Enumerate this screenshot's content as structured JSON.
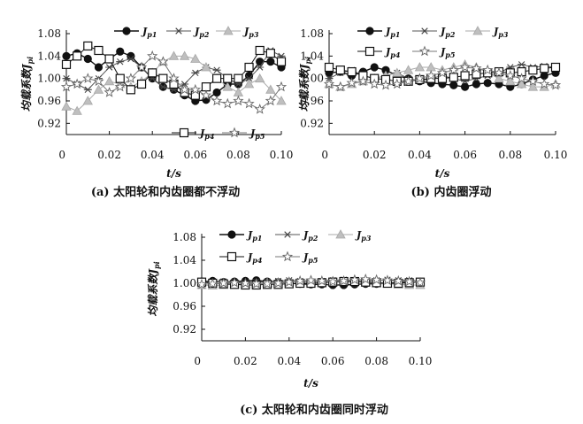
{
  "chart_data": [
    {
      "id": "a",
      "type": "line",
      "caption": "(a) 太阳轮和内齿圈都不浮动",
      "xlabel": "t/s",
      "ylabel": "均载系数J",
      "ylabel_sub": "pi",
      "xlim": [
        0,
        0.1
      ],
      "ylim": [
        0.9,
        1.08
      ],
      "x_ticks": [
        "0",
        "0.02",
        "0.04",
        "0.06",
        "0.08",
        "0.10"
      ],
      "y_ticks": [
        "0.92",
        "0.96",
        "1.00",
        "1.04",
        "1.08"
      ],
      "series": [
        {
          "name": "J",
          "sub": "p1",
          "marker": "circle",
          "x": [
            0,
            0.005,
            0.01,
            0.015,
            0.02,
            0.025,
            0.03,
            0.035,
            0.04,
            0.045,
            0.05,
            0.055,
            0.06,
            0.065,
            0.07,
            0.075,
            0.08,
            0.085,
            0.09,
            0.095,
            0.1
          ],
          "y": [
            1.04,
            1.045,
            1.035,
            1.02,
            1.035,
            1.048,
            1.04,
            1.02,
            1.0,
            0.985,
            0.98,
            0.97,
            0.96,
            0.962,
            0.975,
            0.99,
            0.99,
            1.005,
            1.03,
            1.03,
            1.02
          ]
        },
        {
          "name": "J",
          "sub": "p2",
          "marker": "asterisk",
          "x": [
            0,
            0.005,
            0.01,
            0.015,
            0.02,
            0.025,
            0.03,
            0.035,
            0.04,
            0.045,
            0.05,
            0.055,
            0.06,
            0.065,
            0.07,
            0.075,
            0.08,
            0.085,
            0.09,
            0.095,
            0.1
          ],
          "y": [
            1.0,
            0.99,
            0.98,
            1.0,
            1.02,
            1.03,
            1.035,
            1.02,
            1.0,
            0.985,
            0.98,
            0.99,
            1.01,
            1.02,
            1.015,
            1.0,
            0.99,
            1.0,
            1.02,
            1.05,
            1.04
          ]
        },
        {
          "name": "J",
          "sub": "p3",
          "marker": "triangle",
          "x": [
            0,
            0.005,
            0.01,
            0.015,
            0.02,
            0.025,
            0.03,
            0.035,
            0.04,
            0.045,
            0.05,
            0.055,
            0.06,
            0.065,
            0.07,
            0.075,
            0.08,
            0.085,
            0.09,
            0.095,
            0.1
          ],
          "y": [
            0.95,
            0.942,
            0.96,
            0.98,
            0.995,
            0.99,
            0.985,
            0.995,
            1.01,
            1.03,
            1.04,
            1.04,
            1.035,
            1.02,
            1.0,
            0.985,
            0.975,
            0.99,
            1.0,
            0.98,
            0.96
          ]
        },
        {
          "name": "J",
          "sub": "p4",
          "marker": "square",
          "x": [
            0,
            0.005,
            0.01,
            0.015,
            0.02,
            0.025,
            0.03,
            0.035,
            0.04,
            0.045,
            0.05,
            0.055,
            0.06,
            0.065,
            0.07,
            0.075,
            0.08,
            0.085,
            0.09,
            0.095,
            0.1
          ],
          "y": [
            1.025,
            1.04,
            1.058,
            1.05,
            1.035,
            1.0,
            0.98,
            0.99,
            1.01,
            1.0,
            0.99,
            0.975,
            0.97,
            0.985,
            1.0,
            1.0,
            1.0,
            1.02,
            1.05,
            1.045,
            1.03
          ]
        },
        {
          "name": "J",
          "sub": "p5",
          "marker": "star",
          "x": [
            0,
            0.005,
            0.01,
            0.015,
            0.02,
            0.025,
            0.03,
            0.035,
            0.04,
            0.045,
            0.05,
            0.055,
            0.06,
            0.065,
            0.07,
            0.075,
            0.08,
            0.085,
            0.09,
            0.095,
            0.1
          ],
          "y": [
            0.985,
            0.99,
            1.0,
            0.995,
            0.975,
            0.985,
            1.0,
            1.02,
            1.04,
            1.03,
            1.0,
            0.98,
            0.98,
            0.97,
            0.96,
            0.955,
            0.96,
            0.955,
            0.945,
            0.96,
            0.985
          ]
        }
      ]
    },
    {
      "id": "b",
      "type": "line",
      "caption": "(b) 内齿圈浮动",
      "xlabel": "t/s",
      "ylabel": "均载系数J",
      "ylabel_sub": "pi",
      "xlim": [
        0,
        0.1
      ],
      "ylim": [
        0.9,
        1.08
      ],
      "x_ticks": [
        "0",
        "0.02",
        "0.04",
        "0.06",
        "0.08",
        "0.10"
      ],
      "y_ticks": [
        "0.92",
        "0.96",
        "1.00",
        "1.04",
        "1.08"
      ],
      "series": [
        {
          "name": "J",
          "sub": "p1",
          "marker": "circle",
          "x": [
            0,
            0.005,
            0.01,
            0.015,
            0.02,
            0.025,
            0.03,
            0.035,
            0.04,
            0.045,
            0.05,
            0.055,
            0.06,
            0.065,
            0.07,
            0.075,
            0.08,
            0.085,
            0.09,
            0.095,
            0.1
          ],
          "y": [
            1.01,
            1.012,
            1.005,
            1.012,
            1.02,
            1.015,
            1.005,
            1.0,
            0.995,
            0.992,
            0.99,
            0.988,
            0.985,
            0.99,
            0.992,
            0.99,
            0.985,
            0.99,
            0.998,
            1.005,
            1.01
          ]
        },
        {
          "name": "J",
          "sub": "p2",
          "marker": "asterisk",
          "x": [
            0,
            0.005,
            0.01,
            0.015,
            0.02,
            0.025,
            0.03,
            0.035,
            0.04,
            0.045,
            0.05,
            0.055,
            0.06,
            0.065,
            0.07,
            0.075,
            0.08,
            0.085,
            0.09,
            0.095,
            0.1
          ],
          "y": [
            1.0,
            1.01,
            1.015,
            1.005,
            1.0,
            1.005,
            1.01,
            1.0,
            0.995,
            1.0,
            1.005,
            1.0,
            0.995,
            1.0,
            1.005,
            1.01,
            1.02,
            1.025,
            1.02,
            1.022,
            1.02
          ]
        },
        {
          "name": "J",
          "sub": "p3",
          "marker": "triangle",
          "x": [
            0,
            0.005,
            0.01,
            0.015,
            0.02,
            0.025,
            0.03,
            0.035,
            0.04,
            0.045,
            0.05,
            0.055,
            0.06,
            0.065,
            0.07,
            0.075,
            0.08,
            0.085,
            0.09,
            0.095,
            0.1
          ],
          "y": [
            0.99,
            0.985,
            0.99,
            0.995,
            1.0,
            1.005,
            1.01,
            1.015,
            1.02,
            1.02,
            1.015,
            1.02,
            1.025,
            1.02,
            1.01,
            1.0,
            0.995,
            0.99,
            0.985,
            0.985,
            0.99
          ]
        },
        {
          "name": "J",
          "sub": "p4",
          "marker": "square",
          "x": [
            0,
            0.005,
            0.01,
            0.015,
            0.02,
            0.025,
            0.03,
            0.035,
            0.04,
            0.045,
            0.05,
            0.055,
            0.06,
            0.065,
            0.07,
            0.075,
            0.08,
            0.085,
            0.09,
            0.095,
            0.1
          ],
          "y": [
            1.02,
            1.015,
            1.012,
            1.005,
            1.0,
            0.998,
            0.995,
            0.995,
            0.998,
            1.0,
            1.0,
            1.002,
            1.005,
            1.008,
            1.01,
            1.012,
            1.01,
            1.012,
            1.015,
            1.018,
            1.02
          ]
        },
        {
          "name": "J",
          "sub": "p5",
          "marker": "star",
          "x": [
            0,
            0.005,
            0.01,
            0.015,
            0.02,
            0.025,
            0.03,
            0.035,
            0.04,
            0.045,
            0.05,
            0.055,
            0.06,
            0.065,
            0.07,
            0.075,
            0.08,
            0.085,
            0.09,
            0.095,
            0.1
          ],
          "y": [
            0.99,
            0.985,
            0.992,
            0.995,
            0.99,
            0.988,
            0.99,
            0.995,
            1.0,
            1.005,
            1.01,
            1.015,
            1.02,
            1.018,
            1.015,
            1.01,
            1.005,
            1.0,
            0.995,
            0.99,
            0.988
          ]
        }
      ]
    },
    {
      "id": "c",
      "type": "line",
      "caption": "(c) 太阳轮和内齿圈同时浮动",
      "xlabel": "t/s",
      "ylabel": "均载系数J",
      "ylabel_sub": "pi",
      "xlim": [
        0,
        0.1
      ],
      "ylim": [
        0.9,
        1.08
      ],
      "x_ticks": [
        "0",
        "0.02",
        "0.04",
        "0.06",
        "0.08",
        "0.10"
      ],
      "y_ticks": [
        "0.92",
        "0.96",
        "1.00",
        "1.04",
        "1.08"
      ],
      "series": [
        {
          "name": "J",
          "sub": "p1",
          "marker": "circle",
          "x": [
            0,
            0.005,
            0.01,
            0.015,
            0.02,
            0.025,
            0.03,
            0.035,
            0.04,
            0.045,
            0.05,
            0.055,
            0.06,
            0.065,
            0.07,
            0.075,
            0.08,
            0.085,
            0.09,
            0.095,
            0.1
          ],
          "y": [
            1.003,
            1.004,
            1.002,
            1.003,
            1.004,
            1.005,
            1.003,
            1.002,
            1.0,
            0.999,
            0.998,
            0.998,
            0.997,
            0.997,
            0.998,
            0.999,
            0.999,
            1.0,
            1.001,
            1.002,
            1.002
          ]
        },
        {
          "name": "J",
          "sub": "p2",
          "marker": "asterisk",
          "x": [
            0,
            0.005,
            0.01,
            0.015,
            0.02,
            0.025,
            0.03,
            0.035,
            0.04,
            0.045,
            0.05,
            0.055,
            0.06,
            0.065,
            0.07,
            0.075,
            0.08,
            0.085,
            0.09,
            0.095,
            0.1
          ],
          "y": [
            1.0,
            1.002,
            1.003,
            1.002,
            1.001,
            1.002,
            1.003,
            1.004,
            1.005,
            1.004,
            1.003,
            1.004,
            1.005,
            1.006,
            1.005,
            1.004,
            1.005,
            1.006,
            1.005,
            1.005,
            1.004
          ]
        },
        {
          "name": "J",
          "sub": "p3",
          "marker": "triangle",
          "x": [
            0,
            0.005,
            0.01,
            0.015,
            0.02,
            0.025,
            0.03,
            0.035,
            0.04,
            0.045,
            0.05,
            0.055,
            0.06,
            0.065,
            0.07,
            0.075,
            0.08,
            0.085,
            0.09,
            0.095,
            0.1
          ],
          "y": [
            0.997,
            0.996,
            0.997,
            0.998,
            0.999,
            1.0,
            1.001,
            1.002,
            1.003,
            1.003,
            1.002,
            1.003,
            1.004,
            1.003,
            1.002,
            1.001,
            1.0,
            0.999,
            0.998,
            0.997,
            0.997
          ]
        },
        {
          "name": "J",
          "sub": "p4",
          "marker": "square",
          "x": [
            0,
            0.005,
            0.01,
            0.015,
            0.02,
            0.025,
            0.03,
            0.035,
            0.04,
            0.045,
            0.05,
            0.055,
            0.06,
            0.065,
            0.07,
            0.075,
            0.08,
            0.085,
            0.09,
            0.095,
            0.1
          ],
          "y": [
            1.002,
            1.0,
            0.999,
            0.998,
            0.997,
            0.997,
            0.998,
            0.998,
            0.999,
            1.0,
            1.0,
            1.001,
            1.002,
            1.003,
            1.003,
            1.002,
            1.001,
            1.0,
            1.0,
            1.001,
            1.002
          ]
        },
        {
          "name": "J",
          "sub": "p5",
          "marker": "star",
          "x": [
            0,
            0.005,
            0.01,
            0.015,
            0.02,
            0.025,
            0.03,
            0.035,
            0.04,
            0.045,
            0.05,
            0.055,
            0.06,
            0.065,
            0.07,
            0.075,
            0.08,
            0.085,
            0.09,
            0.095,
            0.1
          ],
          "y": [
            0.998,
            0.999,
            1.0,
            1.001,
            1.0,
            0.999,
            0.999,
            1.0,
            1.002,
            1.004,
            1.005,
            1.004,
            1.003,
            1.004,
            1.006,
            1.007,
            1.006,
            1.005,
            1.004,
            1.003,
            1.001
          ]
        }
      ]
    }
  ]
}
